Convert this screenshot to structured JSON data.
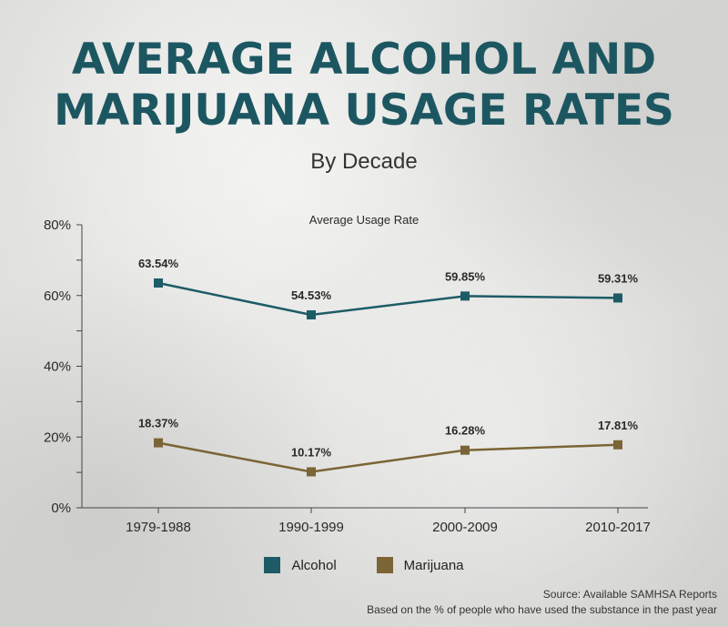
{
  "chart_data": {
    "type": "line",
    "title_line1": "AVERAGE ALCOHOL AND",
    "title_line2": "MARIJUANA USAGE RATES",
    "subtitle": "By Decade",
    "ylabel": "Average Usage Rate",
    "categories": [
      "1979-1988",
      "1990-1999",
      "2000-2009",
      "2010-2017"
    ],
    "ylim": [
      0,
      80
    ],
    "yticks": [
      0,
      20,
      40,
      60,
      80
    ],
    "ytick_labels": [
      "0%",
      "20%",
      "40%",
      "60%",
      "80%"
    ],
    "series": [
      {
        "name": "Alcohol",
        "color": "#1d5c66",
        "values": [
          63.54,
          54.53,
          59.85,
          59.31
        ],
        "labels": [
          "63.54%",
          "54.53%",
          "59.85%",
          "59.31%"
        ]
      },
      {
        "name": "Marijuana",
        "color": "#7b6536",
        "values": [
          18.37,
          10.17,
          16.28,
          17.81
        ],
        "labels": [
          "18.37%",
          "10.17%",
          "16.28%",
          "17.81%"
        ]
      }
    ],
    "legend_position": "bottom",
    "grid": false
  },
  "footer": {
    "source": "Source: Available SAMHSA Reports",
    "note": "Based on the % of people who have used the substance in the past year"
  }
}
